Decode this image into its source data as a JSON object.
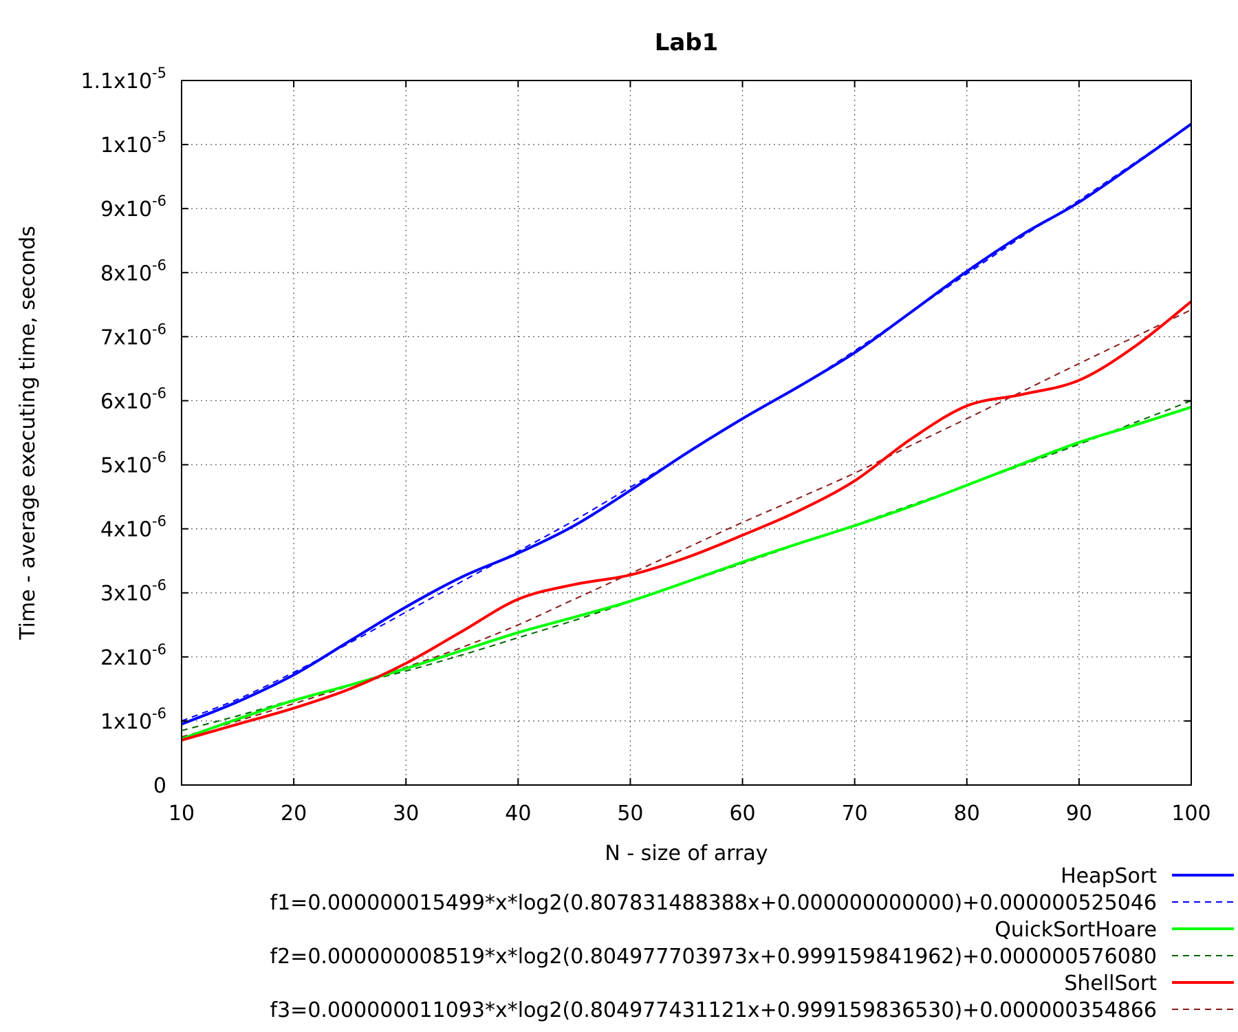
{
  "chart_data": {
    "type": "line",
    "title": "Lab1",
    "xlabel": "N - size of array",
    "ylabel": "Time - average executing time, seconds",
    "xlim": [
      10,
      100
    ],
    "ylim": [
      0,
      1.1e-05
    ],
    "grid": true,
    "legend_position": "bottom-right",
    "x_ticks": [
      {
        "value": 10,
        "label": "10"
      },
      {
        "value": 20,
        "label": "20"
      },
      {
        "value": 30,
        "label": "30"
      },
      {
        "value": 40,
        "label": "40"
      },
      {
        "value": 50,
        "label": "50"
      },
      {
        "value": 60,
        "label": "60"
      },
      {
        "value": 70,
        "label": "70"
      },
      {
        "value": 80,
        "label": "80"
      },
      {
        "value": 90,
        "label": "90"
      },
      {
        "value": 100,
        "label": "100"
      }
    ],
    "y_ticks": [
      {
        "value": 0,
        "mantissa": "0",
        "exponent": ""
      },
      {
        "value": 1e-06,
        "mantissa": "1x10",
        "exponent": "-6"
      },
      {
        "value": 2e-06,
        "mantissa": "2x10",
        "exponent": "-6"
      },
      {
        "value": 3e-06,
        "mantissa": "3x10",
        "exponent": "-6"
      },
      {
        "value": 4e-06,
        "mantissa": "4x10",
        "exponent": "-6"
      },
      {
        "value": 5e-06,
        "mantissa": "5x10",
        "exponent": "-6"
      },
      {
        "value": 6e-06,
        "mantissa": "6x10",
        "exponent": "-6"
      },
      {
        "value": 7e-06,
        "mantissa": "7x10",
        "exponent": "-6"
      },
      {
        "value": 8e-06,
        "mantissa": "8x10",
        "exponent": "-6"
      },
      {
        "value": 9e-06,
        "mantissa": "9x10",
        "exponent": "-6"
      },
      {
        "value": 1e-05,
        "mantissa": "1x10",
        "exponent": "-5"
      },
      {
        "value": 1.1e-05,
        "mantissa": "1.1x10",
        "exponent": "-5"
      }
    ],
    "x": [
      10,
      15,
      20,
      25,
      30,
      35,
      40,
      45,
      50,
      55,
      60,
      65,
      70,
      75,
      80,
      85,
      90,
      95,
      100
    ],
    "series": [
      {
        "name": "HeapSort",
        "color": "#0000ff",
        "style": "solid",
        "values": [
          9.5e-07,
          1.3e-06,
          1.72e-06,
          2.25e-06,
          2.78e-06,
          3.25e-06,
          3.62e-06,
          4.05e-06,
          4.6e-06,
          5.18e-06,
          5.72e-06,
          6.22e-06,
          6.75e-06,
          7.38e-06,
          8.02e-06,
          8.6e-06,
          9.1e-06,
          9.7e-06,
          1.032e-05
        ]
      },
      {
        "name": "f1=0.000000015499*x*log2(0.807831488388x+0.000000000000)+0.000000525046",
        "color": "#0000ff",
        "style": "dashed",
        "values": [
          1e-06,
          1.34e-06,
          1.76e-06,
          2.22e-06,
          2.7e-06,
          3.18e-06,
          3.65e-06,
          4.13e-06,
          4.65e-06,
          5.17e-06,
          5.72e-06,
          6.22e-06,
          6.78e-06,
          7.38e-06,
          7.98e-06,
          8.57e-06,
          9.13e-06,
          9.72e-06,
          1.032e-05
        ]
      },
      {
        "name": "QuickSortHoare",
        "color": "#00ff00",
        "style": "solid",
        "values": [
          7.2e-07,
          1.03e-06,
          1.32e-06,
          1.56e-06,
          1.82e-06,
          2.1e-06,
          2.38e-06,
          2.62e-06,
          2.87e-06,
          3.17e-06,
          3.48e-06,
          3.77e-06,
          4.05e-06,
          4.35e-06,
          4.68e-06,
          5.02e-06,
          5.35e-06,
          5.62e-06,
          5.9e-06
        ]
      },
      {
        "name": "f2=0.000000008519*x*log2(0.804977703973x+0.999159841962)+0.000000576080",
        "color": "#006400",
        "style": "dashed",
        "values": [
          8.5e-07,
          1.08e-06,
          1.33e-06,
          1.56e-06,
          1.78e-06,
          2.03e-06,
          2.3e-06,
          2.57e-06,
          2.86e-06,
          3.16e-06,
          3.46e-06,
          3.76e-06,
          4.06e-06,
          4.37e-06,
          4.68e-06,
          5e-06,
          5.32e-06,
          5.66e-06,
          6e-06
        ]
      },
      {
        "name": "ShellSort",
        "color": "#ff0000",
        "style": "solid",
        "values": [
          7e-07,
          9.5e-07,
          1.2e-06,
          1.5e-06,
          1.9e-06,
          2.4e-06,
          2.9e-06,
          3.13e-06,
          3.28e-06,
          3.55e-06,
          3.9e-06,
          4.28e-06,
          4.75e-06,
          5.4e-06,
          5.92e-06,
          6.1e-06,
          6.32e-06,
          6.85e-06,
          7.55e-06
        ]
      },
      {
        "name": "f3=0.000000011093*x*log2(0.804977431121x+0.999159836530)+0.000000354866",
        "color": "#8b1a1a",
        "style": "dashed",
        "values": [
          7.5e-07,
          1e-06,
          1.27e-06,
          1.55e-06,
          1.84e-06,
          2.15e-06,
          2.5e-06,
          2.9e-06,
          3.3e-06,
          3.7e-06,
          4.1e-06,
          4.48e-06,
          4.87e-06,
          5.3e-06,
          5.72e-06,
          6.15e-06,
          6.58e-06,
          7e-06,
          7.42e-06
        ]
      }
    ]
  }
}
